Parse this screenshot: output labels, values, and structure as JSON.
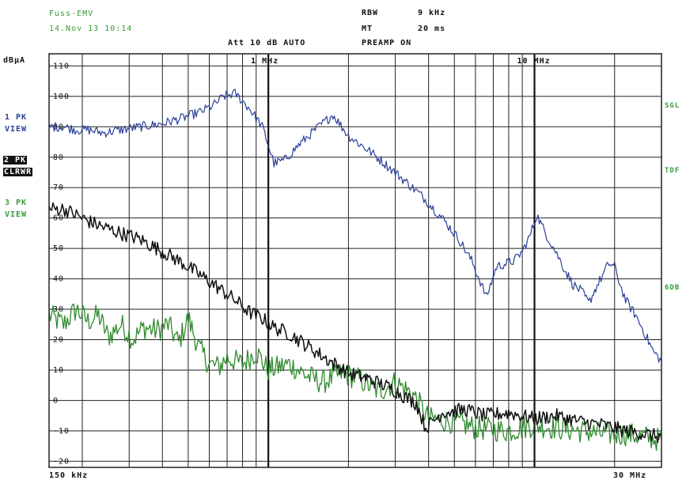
{
  "header": {
    "device_name": "Fuss-EMV",
    "date_time": "14.Nov 13 10:14",
    "rbw_label": "RBW",
    "rbw_value": "9 kHz",
    "mt_label": "MT",
    "mt_value": "20 ms",
    "att_line": "Att 10 dB AUTO",
    "preamp_line": "PREAMP ON"
  },
  "traces_panel": {
    "trace1_line1": "1 PK",
    "trace1_line2": "VIEW",
    "trace2_line1": "2 PK",
    "trace2_line2": "CLRWR",
    "trace3_line1": "3 PK",
    "trace3_line2": "VIEW"
  },
  "right_labels": {
    "top": "SGL",
    "middle": "TDF",
    "bottom": "6DB"
  },
  "colors": {
    "trace1": "#2b3f9a",
    "trace2": "#111111",
    "trace3": "#2e8b2e",
    "grid": "#222222",
    "label_green": "#3a9a3a"
  },
  "chart_data": {
    "type": "line",
    "title": "",
    "ylabel": "dBµA",
    "xlabel": "",
    "x_scale": "log",
    "xlim_mhz": [
      0.15,
      30
    ],
    "ylim": [
      -22,
      114
    ],
    "x_start_label": "150 kHz",
    "x_end_label": "30 MHz",
    "x_markers": [
      {
        "label": "1 MHz",
        "x_mhz": 1
      },
      {
        "label": "10 MHz",
        "x_mhz": 10
      }
    ],
    "y_ticks": [
      110,
      100,
      90,
      80,
      70,
      60,
      50,
      40,
      30,
      20,
      10,
      0,
      -10,
      -20
    ],
    "x_grid_mhz": [
      0.15,
      0.2,
      0.3,
      0.4,
      0.5,
      0.6,
      0.7,
      0.8,
      0.9,
      1,
      2,
      3,
      4,
      5,
      6,
      7,
      8,
      9,
      10,
      20,
      30
    ],
    "grid": true,
    "legend": "none",
    "series": [
      {
        "name": "1 PK VIEW",
        "x": [
          0.15,
          0.17,
          0.19,
          0.21,
          0.24,
          0.28,
          0.33,
          0.4,
          0.48,
          0.56,
          0.62,
          0.68,
          0.75,
          0.85,
          0.95,
          1.0,
          1.05,
          1.15,
          1.3,
          1.5,
          1.75,
          2.0,
          2.4,
          3.0,
          3.8,
          4.5,
          5.2,
          5.8,
          6.2,
          6.6,
          7.2,
          7.8,
          8.4,
          9.0,
          9.6,
          10.2,
          11,
          12,
          13,
          14,
          15,
          16,
          17,
          18,
          19,
          20,
          21,
          22,
          24,
          26,
          28,
          30
        ],
        "y": [
          90,
          90,
          89,
          89,
          88,
          89,
          90,
          91,
          93,
          95,
          97,
          100,
          101,
          96,
          90,
          84,
          78,
          79,
          84,
          89,
          94,
          87,
          82,
          75,
          67,
          60,
          53,
          46,
          40,
          34,
          44,
          45,
          46,
          49,
          54,
          61,
          55,
          49,
          43,
          38,
          36,
          32,
          37,
          41,
          45,
          44,
          38,
          33,
          28,
          22,
          16,
          13
        ]
      },
      {
        "name": "2 PK CLRWR",
        "x": [
          0.15,
          0.17,
          0.19,
          0.21,
          0.24,
          0.28,
          0.33,
          0.4,
          0.48,
          0.56,
          0.65,
          0.75,
          0.85,
          0.95,
          1.05,
          1.2,
          1.4,
          1.7,
          2.0,
          2.4,
          2.9,
          3.3,
          3.6,
          3.9,
          4.5,
          5.5,
          6.5,
          8,
          10,
          12,
          15,
          18,
          22,
          26,
          30
        ],
        "y": [
          63,
          63,
          61,
          59,
          57,
          55,
          53,
          49,
          45,
          41,
          37,
          33,
          29,
          27,
          24,
          22,
          18,
          13,
          9,
          7,
          4,
          1,
          -1,
          -9,
          -4,
          -3,
          -5,
          -4,
          -6,
          -5,
          -7,
          -8,
          -10,
          -11,
          -12
        ]
      },
      {
        "name": "3 PK VIEW",
        "x": [
          0.15,
          0.17,
          0.19,
          0.21,
          0.23,
          0.25,
          0.28,
          0.31,
          0.34,
          0.38,
          0.42,
          0.46,
          0.5,
          0.55,
          0.6,
          0.65,
          0.7,
          0.8,
          0.9,
          1.0,
          1.2,
          1.4,
          1.6,
          1.9,
          2.2,
          2.6,
          3.0,
          3.5,
          4.0,
          5,
          6,
          8,
          10,
          12,
          15,
          18,
          22,
          26,
          30
        ],
        "y": [
          28,
          25,
          30,
          26,
          28,
          21,
          25,
          20,
          24,
          23,
          25,
          19,
          27,
          17,
          12,
          11,
          14,
          12,
          16,
          10,
          12,
          8,
          6,
          9,
          7,
          3,
          6,
          2,
          -6,
          -7,
          -9,
          -10,
          -8,
          -9,
          -10,
          -11,
          -11,
          -12,
          -13
        ]
      }
    ]
  }
}
